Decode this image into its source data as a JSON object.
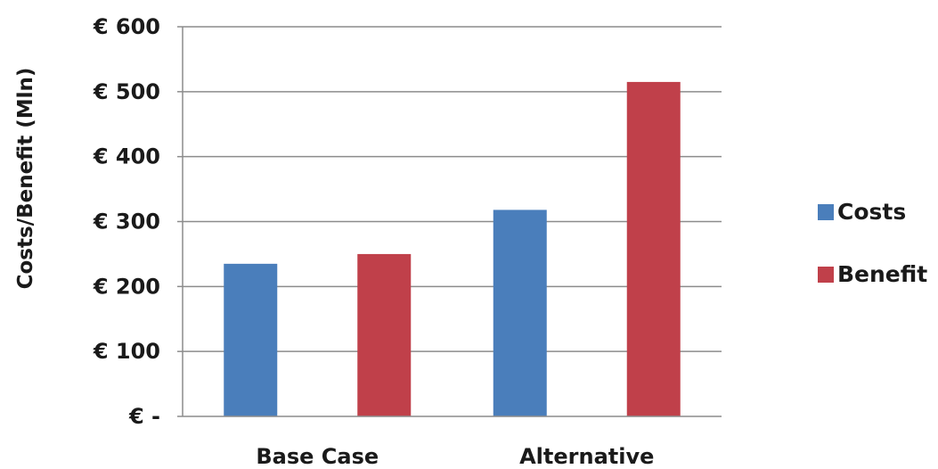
{
  "chart_data": {
    "type": "bar",
    "categories": [
      "Base Case",
      "Alternative"
    ],
    "series": [
      {
        "name": "Costs",
        "color": "#4a7ebb",
        "values": [
          235,
          318
        ]
      },
      {
        "name": "Benefit",
        "color": "#c0404a",
        "values": [
          250,
          515
        ]
      }
    ],
    "ylabel": "Costs/Benefit (Mln)",
    "xlabel": "",
    "ylim": [
      0,
      600
    ],
    "yticks": [
      0,
      100,
      200,
      300,
      400,
      500,
      600
    ],
    "ytick_labels": [
      "€ -",
      "€ 100",
      "€ 200",
      "€ 300",
      "€ 400",
      "€ 500",
      "€ 600"
    ],
    "grid": true,
    "legend_position": "right"
  }
}
